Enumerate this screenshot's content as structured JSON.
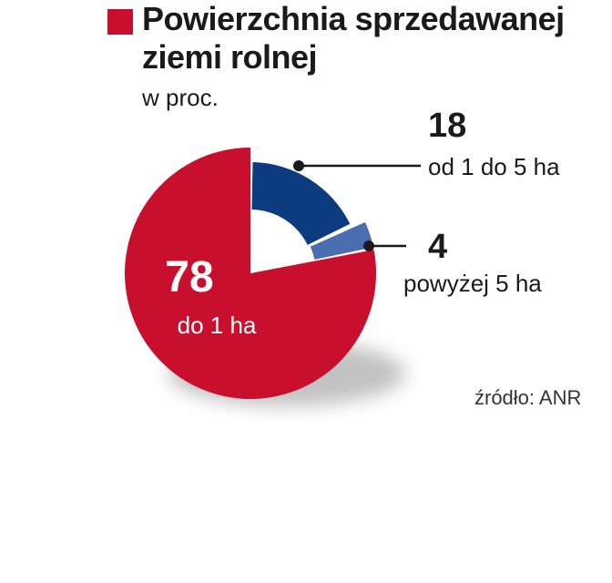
{
  "header": {
    "title_line1": "Powierzchnia sprzedawanej",
    "title_line2": "ziemi rolnej",
    "subtitle": "w proc."
  },
  "chart_data": {
    "type": "pie",
    "title": "Powierzchnia sprzedawanej ziemi rolnej",
    "subtitle": "w proc.",
    "slices": [
      {
        "label": "do 1 ha",
        "value": 78,
        "color": "#c8102e"
      },
      {
        "label": "od 1 do 5 ha",
        "value": 18,
        "color": "#0d3b7f"
      },
      {
        "label": "powyżej 5 ha",
        "value": 4,
        "color": "#4a6eb0"
      }
    ]
  },
  "source": "źródło: ANR"
}
